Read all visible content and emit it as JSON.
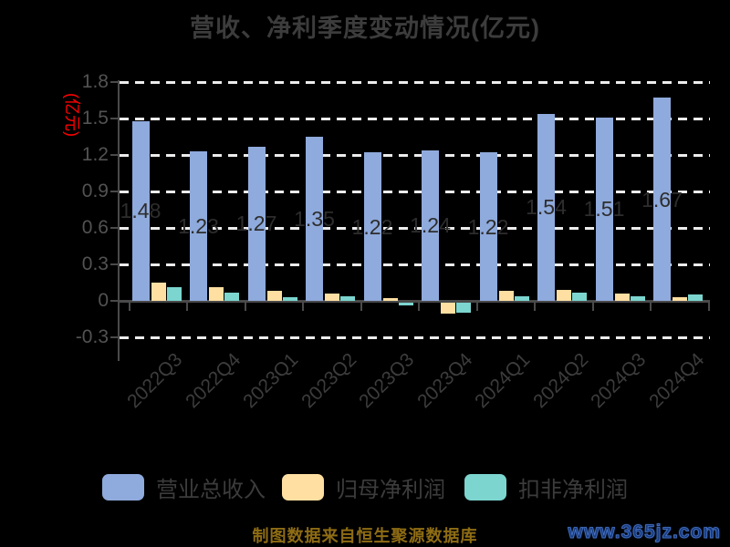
{
  "title": "营收、净利季度变动情况(亿元)",
  "y_axis_label": "(亿元)",
  "footer": {
    "source_note": "制图数据来自恒生聚源数据库",
    "watermark": "www.365jz.com"
  },
  "colors": {
    "revenue_blue": "#8faadc",
    "net_profit_orange": "#ffdfa2",
    "non_gaap_teal": "#7cd5cf",
    "y_axis_label_red": "#ff0000",
    "source_note_gold": "#8e6c14",
    "watermark_blue": "#173b80"
  },
  "chart_data": {
    "type": "bar",
    "title": "营收、净利季度变动情况(亿元)",
    "ylabel": "(亿元)",
    "xlabel": "",
    "categories": [
      "2022Q3",
      "2022Q4",
      "2023Q1",
      "2023Q2",
      "2023Q3",
      "2023Q4",
      "2024Q1",
      "2024Q2",
      "2024Q3",
      "2024Q4"
    ],
    "series": [
      {
        "name": "营业总收入",
        "color": "#8faadc",
        "values": [
          1.48,
          1.23,
          1.27,
          1.35,
          1.22,
          1.24,
          1.22,
          1.54,
          1.51,
          1.67
        ],
        "labels": [
          "1.48",
          "1.23",
          "1.27",
          "1.35",
          "1.22",
          "1.24",
          "1.22",
          "1.54",
          "1.51",
          "1.67"
        ]
      },
      {
        "name": "归母净利润",
        "color": "#ffdfa2",
        "values": [
          0.15,
          0.11,
          0.08,
          0.06,
          0.02,
          -0.09,
          0.08,
          0.09,
          0.06,
          0.03
        ]
      },
      {
        "name": "扣非净利润",
        "color": "#7cd5cf",
        "values": [
          0.11,
          0.07,
          0.03,
          0.04,
          -0.02,
          -0.08,
          0.04,
          0.07,
          0.04,
          0.05
        ]
      }
    ],
    "y_ticks": [
      1.8,
      1.5,
      1.2,
      0.9,
      0.6,
      0.3,
      0,
      -0.3
    ],
    "y_tick_labels": [
      "1.8",
      "1.5",
      "1.2",
      "0.9",
      "0.6",
      "0.3",
      "0",
      "-0.3"
    ],
    "ylim": [
      -0.3,
      1.8
    ],
    "grid": "dashed-white-horizontal",
    "legend_position": "bottom"
  }
}
